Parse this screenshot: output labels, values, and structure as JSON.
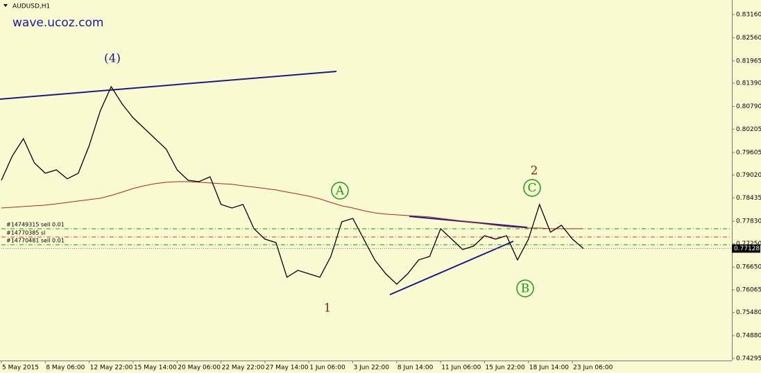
{
  "chart_data": {
    "type": "line",
    "title": "AUDUSD,H1",
    "subtitle": "wave.ucoz.com",
    "categories": [
      "5 May 2015",
      null,
      null,
      null,
      "8 May 06:00",
      null,
      null,
      null,
      "12 May 22:00",
      null,
      null,
      null,
      "15 May 14:00",
      null,
      null,
      null,
      "20 May 06:00",
      null,
      null,
      null,
      "22 May 22:00",
      null,
      null,
      null,
      "27 May 14:00",
      null,
      null,
      null,
      "1 Jun 06:00",
      null,
      null,
      null,
      "3 Jun 22:00",
      null,
      null,
      null,
      "8 Jun 14:00",
      null,
      null,
      null,
      "11 Jun 06:00",
      null,
      null,
      null,
      "15 Jun 22:00",
      null,
      null,
      null,
      "18 Jun 14:00",
      null,
      null,
      null,
      "23 Jun 06:00",
      null
    ],
    "series": [
      {
        "color": "#000000",
        "values": [
          0.78889,
          0.79515,
          0.79961,
          0.79336,
          0.79068,
          0.79157,
          0.78925,
          0.79068,
          0.79783,
          0.80676,
          0.81302,
          0.80855,
          0.80497,
          0.80229,
          0.79961,
          0.79693,
          0.79157,
          0.78889,
          0.78853,
          0.78978,
          0.78264,
          0.78174,
          0.78264,
          0.77638,
          0.7737,
          0.77281,
          0.76387,
          0.76566,
          0.76477,
          0.76387,
          0.76923,
          0.77817,
          0.77906,
          0.7737,
          0.76834,
          0.76477,
          0.76209,
          0.76477,
          0.76834,
          0.76923,
          0.77638,
          0.7737,
          0.77102,
          0.77191,
          0.77459,
          0.7737,
          0.77459,
          0.76834,
          0.7737,
          0.78264,
          0.77549,
          0.77728,
          0.7737,
          0.77128
        ]
      },
      {
        "color": "#b22222",
        "values": [
          0.78174,
          0.78192,
          0.7821,
          0.78228,
          0.78246,
          0.78281,
          0.78317,
          0.78353,
          0.78389,
          0.78424,
          0.78496,
          0.78585,
          0.78675,
          0.78746,
          0.788,
          0.78836,
          0.78853,
          0.78853,
          0.78836,
          0.78818,
          0.788,
          0.78782,
          0.78746,
          0.78711,
          0.78675,
          0.78639,
          0.78585,
          0.78532,
          0.78478,
          0.78407,
          0.78317,
          0.78228,
          0.78174,
          0.78103,
          0.78049,
          0.78014,
          0.77996,
          0.77978,
          0.7796,
          0.77942,
          0.77906,
          0.77871,
          0.77835,
          0.77799,
          0.77763,
          0.77728,
          0.77692,
          0.77674,
          0.77656,
          0.77656,
          0.77638,
          0.77638,
          0.77638,
          0.77638
        ]
      }
    ],
    "orders": [
      {
        "label": "#14749315 sell 0.01",
        "price": 0.77638,
        "color": "#00a000"
      },
      {
        "label": "#14770385 sl",
        "price": 0.77424,
        "color": "#e03030"
      },
      {
        "label": "#14770481 sell 0.01",
        "price": 0.77227,
        "color": "#00a000"
      }
    ],
    "current_price": 0.77128,
    "annotations": [
      "(4)",
      "1",
      "2",
      "A",
      "B",
      "C"
    ],
    "ylim": [
      0.74241,
      0.83446
    ],
    "yticks": [
      {
        "value": 0.8316,
        "label": "0.83160"
      },
      {
        "value": 0.8256,
        "label": "0.82560"
      },
      {
        "value": 0.81965,
        "label": "0.81965"
      },
      {
        "value": 0.8139,
        "label": "0.81390"
      },
      {
        "value": 0.8079,
        "label": "0.80790"
      },
      {
        "value": 0.80205,
        "label": "0.80205"
      },
      {
        "value": 0.79605,
        "label": "0.79605"
      },
      {
        "value": 0.7902,
        "label": "0.79020"
      },
      {
        "value": 0.78435,
        "label": "0.78435"
      },
      {
        "value": 0.7783,
        "label": "0.77830"
      },
      {
        "value": 0.7725,
        "label": "0.77250"
      },
      {
        "value": 0.7665,
        "label": "0.76650"
      },
      {
        "value": 0.76065,
        "label": "0.76065"
      },
      {
        "value": 0.7548,
        "label": "0.75480"
      },
      {
        "value": 0.7488,
        "label": "0.74880"
      },
      {
        "value": 0.74295,
        "label": "0.74295"
      }
    ],
    "grid": false
  }
}
